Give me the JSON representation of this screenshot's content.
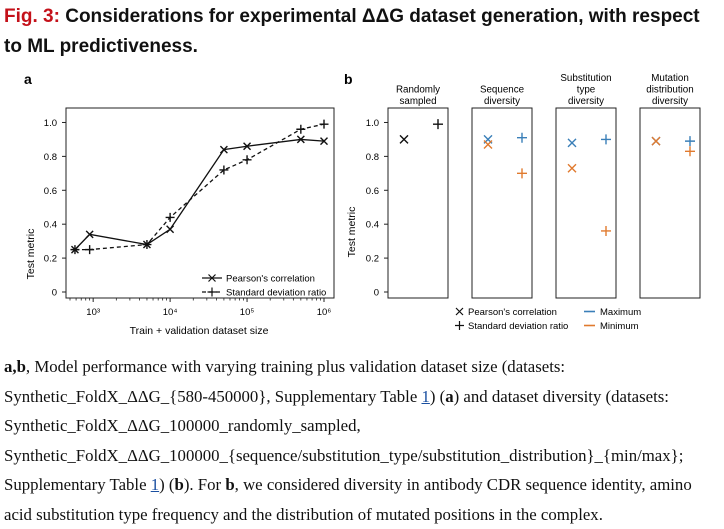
{
  "figure": {
    "title_prefix": "Fig. 3:",
    "title_text": "Considerations for experimental ΔΔG dataset generation, with respect to ML predictiveness."
  },
  "panel_a": {
    "label": "a",
    "ylabel": "Test metric",
    "xlabel": "Train + validation dataset size",
    "yticks": [
      "0",
      "0.2",
      "0.4",
      "0.6",
      "0.8",
      "1.0"
    ],
    "xticks": [
      "10³",
      "10⁴",
      "10⁵",
      "10⁶"
    ],
    "legend": [
      "Pearson's correlation",
      "Standard deviation ratio"
    ]
  },
  "panel_b": {
    "label": "b",
    "ylabel": "Test metric",
    "yticks": [
      "0",
      "0.2",
      "0.4",
      "0.6",
      "0.8",
      "1.0"
    ],
    "groups": [
      "Randomly sampled",
      "Sequence diversity",
      "Substitution type diversity",
      "Mutation distribution diversity"
    ],
    "legend_markers": [
      "Pearson's correlation",
      "Standard deviation ratio"
    ],
    "legend_colors": [
      "Maximum",
      "Minimum"
    ]
  },
  "colors": {
    "maximum": "#3a7fb8",
    "minimum": "#e07a2e",
    "dark": "#111111",
    "accent": "#c4111a"
  },
  "chart_data": [
    {
      "type": "line",
      "x_scale": "log",
      "xlim": [
        500,
        1000000
      ],
      "ylim": [
        0,
        1.05
      ],
      "xlabel": "Train + validation dataset size",
      "ylabel": "Test metric",
      "series": [
        {
          "name": "Pearson's correlation",
          "style": "solid",
          "marker": "x",
          "x": [
            580,
            900,
            5000,
            10000,
            50000,
            100000,
            500000,
            1000000
          ],
          "y": [
            0.25,
            0.34,
            0.28,
            0.37,
            0.84,
            0.86,
            0.9,
            0.89
          ]
        },
        {
          "name": "Standard deviation ratio",
          "style": "dashed",
          "marker": "+",
          "x": [
            580,
            900,
            5000,
            10000,
            50000,
            100000,
            500000,
            1000000
          ],
          "y": [
            0.25,
            0.25,
            0.28,
            0.44,
            0.72,
            0.78,
            0.96,
            0.99
          ]
        }
      ]
    },
    {
      "type": "scatter",
      "ylim": [
        0,
        1.05
      ],
      "ylabel": "Test metric",
      "categories": [
        "Randomly sampled",
        "Sequence diversity",
        "Substitution type diversity",
        "Mutation distribution diversity"
      ],
      "points": [
        {
          "group": 0,
          "metric": "pearson",
          "variant": "none",
          "y": 0.9
        },
        {
          "group": 0,
          "metric": "sd_ratio",
          "variant": "none",
          "y": 0.99
        },
        {
          "group": 1,
          "metric": "pearson",
          "variant": "maximum",
          "y": 0.9
        },
        {
          "group": 1,
          "metric": "pearson",
          "variant": "minimum",
          "y": 0.87
        },
        {
          "group": 1,
          "metric": "sd_ratio",
          "variant": "maximum",
          "y": 0.91
        },
        {
          "group": 1,
          "metric": "sd_ratio",
          "variant": "minimum",
          "y": 0.7
        },
        {
          "group": 2,
          "metric": "pearson",
          "variant": "maximum",
          "y": 0.88
        },
        {
          "group": 2,
          "metric": "pearson",
          "variant": "minimum",
          "y": 0.73
        },
        {
          "group": 2,
          "metric": "sd_ratio",
          "variant": "maximum",
          "y": 0.9
        },
        {
          "group": 2,
          "metric": "sd_ratio",
          "variant": "minimum",
          "y": 0.36
        },
        {
          "group": 3,
          "metric": "pearson",
          "variant": "maximum",
          "y": 0.89
        },
        {
          "group": 3,
          "metric": "pearson",
          "variant": "minimum",
          "y": 0.89
        },
        {
          "group": 3,
          "metric": "sd_ratio",
          "variant": "maximum",
          "y": 0.89
        },
        {
          "group": 3,
          "metric": "sd_ratio",
          "variant": "minimum",
          "y": 0.83
        }
      ]
    }
  ],
  "caption": {
    "part1": "a,b",
    "part2": ", Model performance with varying training plus validation dataset size (datasets: Synthetic_FoldX_ΔΔG_{580-450000}, Supplementary Table ",
    "link1": "1",
    "part3": ") (",
    "a": "a",
    "part4": ") and dataset diversity (datasets: Synthetic_FoldX_ΔΔG_100000_randomly_sampled, Synthetic_FoldX_ΔΔG_100000_{sequence/substitution_type/substitution_distribution}_{min/max}; Supplementary Table ",
    "link2": "1",
    "part5": ") (",
    "b": "b",
    "part6": "). For ",
    "b2": "b",
    "part7": ", we considered diversity in antibody CDR sequence identity, amino acid substitution type frequency and the distribution of mutated positions in the complex."
  }
}
